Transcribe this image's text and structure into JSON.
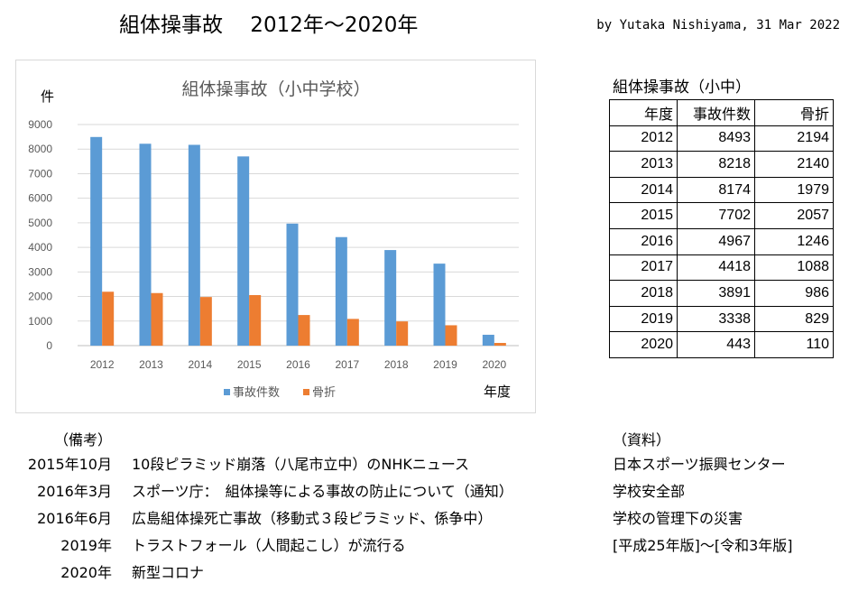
{
  "page": {
    "title": "組体操事故　 2012年～2020年",
    "byline": "by Yutaka Nishiyama, 31 Mar 2022"
  },
  "chart_data": {
    "type": "bar",
    "title": "組体操事故（小中学校）",
    "ylabel": "件",
    "xlabel": "年度",
    "ylim": [
      0,
      9000
    ],
    "yticks": [
      0,
      1000,
      2000,
      3000,
      4000,
      5000,
      6000,
      7000,
      8000,
      9000
    ],
    "grid": true,
    "legend_position": "bottom",
    "categories": [
      "2012",
      "2013",
      "2014",
      "2015",
      "2016",
      "2017",
      "2018",
      "2019",
      "2020"
    ],
    "series": [
      {
        "name": "事故件数",
        "color": "#5B9BD5",
        "values": [
          8493,
          8218,
          8174,
          7702,
          4967,
          4418,
          3891,
          3338,
          443
        ]
      },
      {
        "name": "骨折",
        "color": "#ED7D31",
        "values": [
          2194,
          2140,
          1979,
          2057,
          1246,
          1088,
          986,
          829,
          110
        ]
      }
    ]
  },
  "table": {
    "title": "組体操事故（小中）",
    "headers": [
      "年度",
      "事故件数",
      "骨折"
    ],
    "rows": [
      [
        "2012",
        "8493",
        "2194"
      ],
      [
        "2013",
        "8218",
        "2140"
      ],
      [
        "2014",
        "8174",
        "1979"
      ],
      [
        "2015",
        "7702",
        "2057"
      ],
      [
        "2016",
        "4967",
        "1246"
      ],
      [
        "2017",
        "4418",
        "1088"
      ],
      [
        "2018",
        "3891",
        "986"
      ],
      [
        "2019",
        "3338",
        "829"
      ],
      [
        "2020",
        "443",
        "110"
      ]
    ]
  },
  "notes": {
    "heading": "（備考）",
    "items": [
      {
        "date": "2015年10月",
        "text": "10段ピラミッド崩落（八尾市立中）のNHKニュース"
      },
      {
        "date": "2016年3月",
        "text": "スポーツ庁：　組体操等による事故の防止について（通知）"
      },
      {
        "date": "2016年6月",
        "text": "広島組体操死亡事故（移動式３段ピラミッド、係争中）"
      },
      {
        "date": "2019年",
        "text": "トラストフォール（人間起こし）が流行る"
      },
      {
        "date": "2020年",
        "text": "新型コロナ"
      }
    ]
  },
  "sources": {
    "heading": "（資料）",
    "items": [
      "日本スポーツ振興センター",
      "学校安全部",
      "学校の管理下の災害",
      "[平成25年版]～[令和3年版]"
    ]
  }
}
